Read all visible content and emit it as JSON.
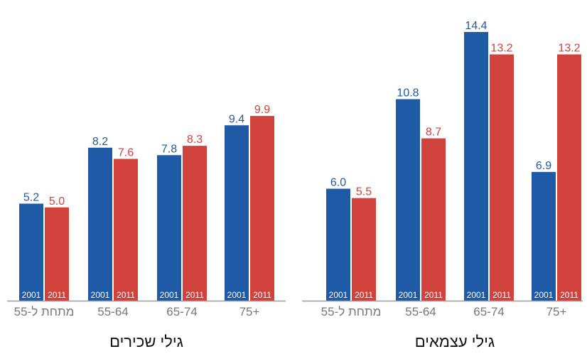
{
  "colors": {
    "series_2001": "#1f5aa6",
    "series_2011": "#d1423d",
    "axis": "#9a9a9a",
    "category_text": "#777777",
    "title_text": "#111111"
  },
  "chart_data": [
    {
      "type": "bar",
      "title": "גילי שכירים",
      "categories": [
        "מתחת ל-55",
        "55-64",
        "65-74",
        "75+"
      ],
      "series": [
        {
          "name": "2001",
          "values": [
            5.2,
            8.2,
            7.8,
            9.4
          ],
          "labels": [
            "5.2",
            "8.2",
            "7.8",
            "9.4"
          ]
        },
        {
          "name": "2011",
          "values": [
            5.0,
            7.6,
            8.3,
            9.9
          ],
          "labels": [
            "5.0",
            "7.6",
            "8.3",
            "9.9"
          ]
        }
      ],
      "ylim": [
        0,
        14.9
      ],
      "grid": false
    },
    {
      "type": "bar",
      "title": "גילי עצמאים",
      "categories": [
        "מתחת ל-55",
        "55-64",
        "65-74",
        "75+"
      ],
      "series": [
        {
          "name": "2001",
          "values": [
            6.0,
            10.8,
            14.4,
            6.9
          ],
          "labels": [
            "6.0",
            "10.8",
            "14.4",
            "6.9"
          ]
        },
        {
          "name": "2011",
          "values": [
            5.5,
            8.7,
            13.2,
            13.2
          ],
          "labels": [
            "5.5",
            "8.7",
            "13.2",
            "13.2"
          ]
        }
      ],
      "ylim": [
        0,
        14.9
      ],
      "grid": false
    }
  ]
}
